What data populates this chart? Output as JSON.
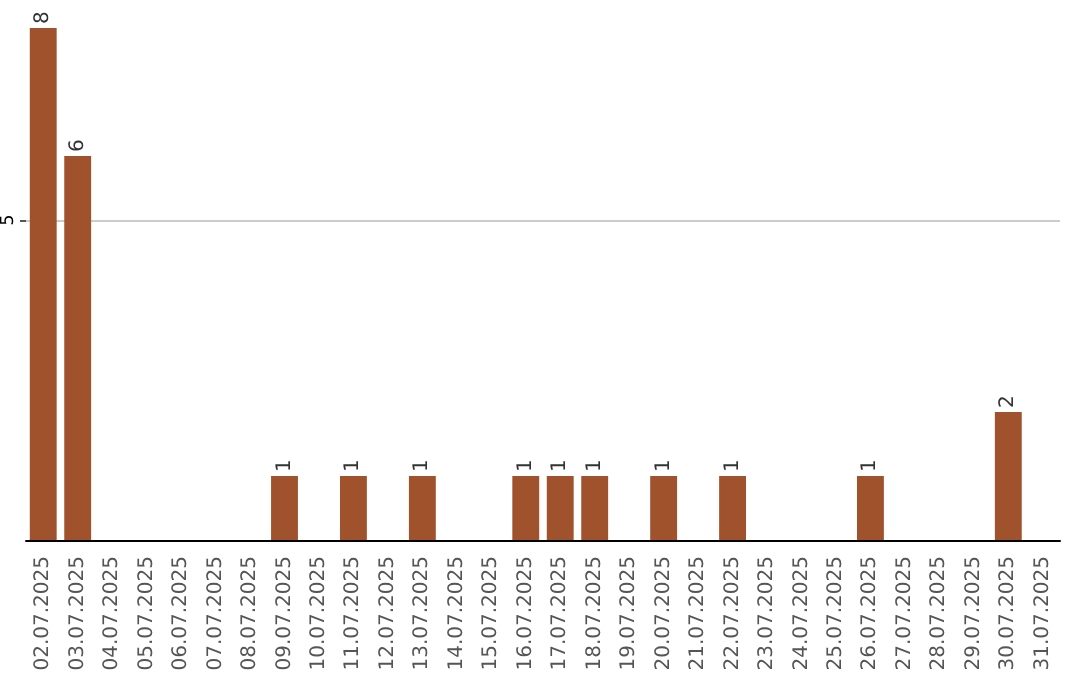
{
  "chart_data": {
    "type": "bar",
    "categories": [
      "02.07.2025",
      "03.07.2025",
      "04.07.2025",
      "05.07.2025",
      "06.07.2025",
      "07.07.2025",
      "08.07.2025",
      "09.07.2025",
      "10.07.2025",
      "11.07.2025",
      "12.07.2025",
      "13.07.2025",
      "14.07.2025",
      "15.07.2025",
      "16.07.2025",
      "17.07.2025",
      "18.07.2025",
      "19.07.2025",
      "20.07.2025",
      "21.07.2025",
      "22.07.2025",
      "23.07.2025",
      "24.07.2025",
      "25.07.2025",
      "26.07.2025",
      "27.07.2025",
      "28.07.2025",
      "29.07.2025",
      "30.07.2025",
      "31.07.2025"
    ],
    "values": [
      8,
      6,
      0,
      0,
      0,
      0,
      0,
      1,
      0,
      1,
      0,
      1,
      0,
      0,
      1,
      1,
      1,
      0,
      1,
      0,
      1,
      0,
      0,
      0,
      1,
      0,
      0,
      0,
      2,
      0
    ],
    "value_labels": [
      "8",
      "6",
      null,
      null,
      null,
      null,
      null,
      "1",
      null,
      "1",
      null,
      "1",
      null,
      null,
      "1",
      "1",
      "1",
      null,
      "1",
      null,
      "1",
      null,
      null,
      null,
      "1",
      null,
      null,
      null,
      "2",
      null
    ],
    "color": "#a0522d",
    "ylim": [
      0,
      8
    ],
    "yticks": [
      5
    ],
    "grid": "y"
  }
}
